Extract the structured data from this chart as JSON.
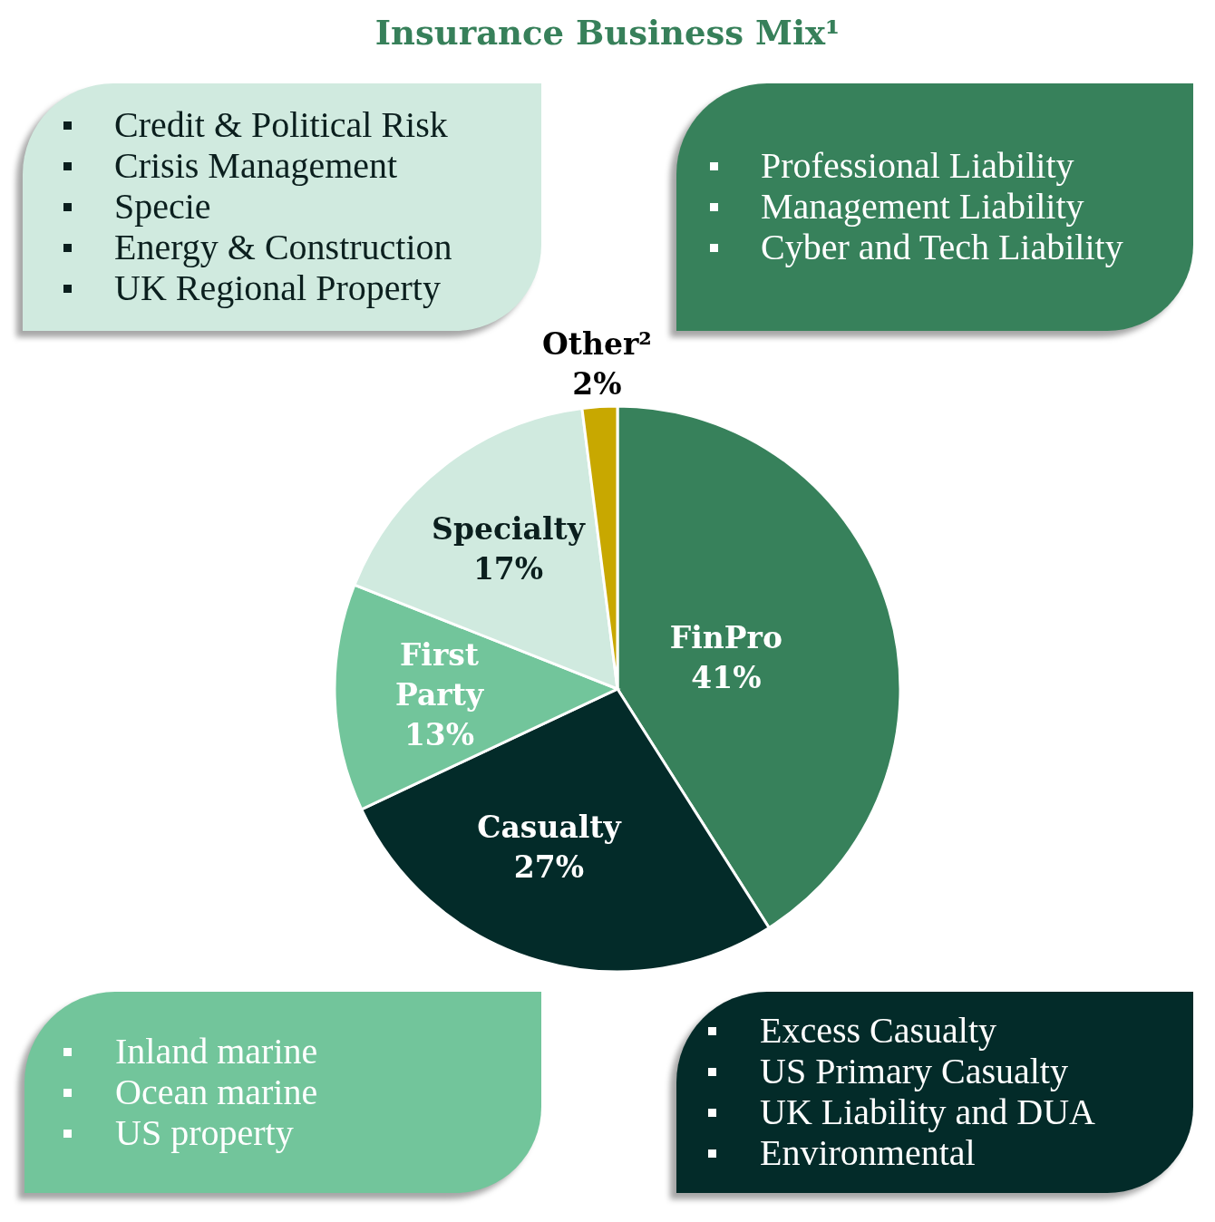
{
  "chart_data": [
    {
      "type": "pie",
      "title": "Insurance Business Mix¹",
      "categories": [
        "FinPro",
        "Casualty",
        "First Party",
        "Specialty",
        "Other²"
      ],
      "values": [
        41,
        27,
        13,
        17,
        2
      ],
      "colors": [
        "#37815b",
        "#032b29",
        "#72c59b",
        "#d0eadf",
        "#c8a800"
      ],
      "value_labels": [
        "41%",
        "27%",
        "13%",
        "17%",
        "2%"
      ]
    },
    {
      "type": "other",
      "annotations": [
        "Credit & Political Risk",
        "Crisis Management",
        "Specie",
        "Energy & Construction",
        "UK Regional Property"
      ],
      "color": "#d0eadf"
    },
    {
      "type": "other",
      "annotations": [
        "Professional Liability",
        "Management Liability",
        "Cyber and Tech Liability"
      ],
      "color": "#37815b"
    },
    {
      "type": "other",
      "annotations": [
        "Inland marine",
        "Ocean marine",
        "US property"
      ],
      "color": "#72c59b"
    },
    {
      "type": "other",
      "annotations": [
        "Excess Casualty",
        "US Primary Casualty",
        "UK Liability and DUA",
        "Environmental"
      ],
      "color": "#032b29"
    }
  ]
}
